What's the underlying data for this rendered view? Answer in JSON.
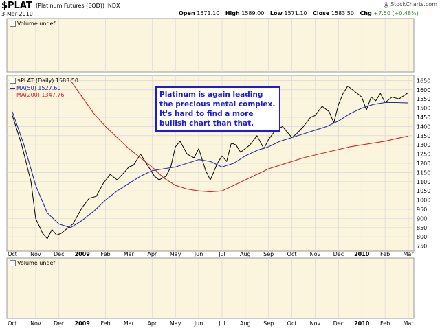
{
  "header": {
    "symbol": "$PLAT",
    "name": "(Platinum Futures (EOD)) INDX",
    "date": "3-Mar-2010",
    "quote": {
      "open_label": "Open",
      "open": "1571.10",
      "high_label": "High",
      "high": "1589.00",
      "low_label": "Low",
      "low": "1571.10",
      "close_label": "Close",
      "close": "1583.50",
      "chg_label": "Chg",
      "chg": "+7.50 (+0.48%)"
    },
    "logo": "@ StockCharts.com"
  },
  "top_panel": {
    "label": "Volume undef"
  },
  "main_panel": {
    "legend_price": "$PLAT (Daily) 1583.50",
    "legend_ma50": "MA(50) 1527.60",
    "legend_ma200": "MA(200) 1347.76"
  },
  "bottom_panel": {
    "label": "Volume undef"
  },
  "annotation": {
    "lines": [
      "Platinum is again leading",
      "the precious metal complex.",
      "It's hard to find a more",
      "bullish chart than that."
    ]
  },
  "colors": {
    "price": "#000000",
    "ma50": "#2a2aa0",
    "ma200": "#e02020",
    "grid": "#d8d8d8",
    "panel_bg": "#fbf5dd",
    "annotation": "#1b1bd9"
  },
  "chart_data": {
    "type": "line",
    "x_labels": [
      "Oct",
      "Nov",
      "Dec",
      "2009",
      "Feb",
      "Mar",
      "Apr",
      "May",
      "Jun",
      "Jul",
      "Aug",
      "Sep",
      "Oct",
      "Nov",
      "Dec",
      "2010",
      "Feb",
      "Mar"
    ],
    "y_ticks": [
      750,
      800,
      850,
      900,
      950,
      1000,
      1050,
      1100,
      1150,
      1200,
      1250,
      1300,
      1350,
      1400,
      1450,
      1500,
      1550,
      1600,
      1650
    ],
    "ylim": [
      730,
      1670
    ],
    "grid": true,
    "legend": "top-left",
    "series": [
      {
        "name": "$PLAT (Daily)",
        "x": [
          0,
          0.4,
          0.8,
          1.0,
          1.3,
          1.5,
          1.7,
          1.9,
          2.1,
          2.3,
          2.6,
          3.0,
          3.3,
          3.6,
          3.9,
          4.2,
          4.5,
          4.8,
          5.0,
          5.2,
          5.5,
          5.8,
          6.1,
          6.3,
          6.6,
          6.8,
          7.0,
          7.2,
          7.5,
          7.8,
          8.0,
          8.3,
          8.5,
          8.8,
          9.0,
          9.2,
          9.4,
          9.6,
          9.8,
          10.2,
          10.5,
          10.8,
          11.0,
          11.3,
          11.6,
          12.0,
          12.2,
          12.5,
          12.8,
          13.0,
          13.3,
          13.6,
          13.8,
          14.0,
          14.2,
          14.4,
          14.7,
          15.0,
          15.2,
          15.4,
          15.6,
          15.8,
          16.0,
          16.3,
          16.6,
          17.0
        ],
        "values": [
          1460,
          1300,
          1100,
          900,
          820,
          790,
          840,
          810,
          820,
          840,
          870,
          960,
          1010,
          1020,
          1090,
          1140,
          1110,
          1150,
          1180,
          1190,
          1250,
          1190,
          1130,
          1110,
          1130,
          1180,
          1290,
          1320,
          1250,
          1230,
          1280,
          1160,
          1110,
          1200,
          1240,
          1210,
          1310,
          1300,
          1260,
          1300,
          1350,
          1280,
          1330,
          1380,
          1400,
          1340,
          1360,
          1400,
          1450,
          1460,
          1510,
          1480,
          1420,
          1520,
          1580,
          1620,
          1590,
          1560,
          1490,
          1560,
          1540,
          1580,
          1530,
          1560,
          1550,
          1584
        ]
      },
      {
        "name": "MA(50)",
        "x": [
          0,
          0.5,
          1.0,
          1.5,
          2.0,
          2.5,
          3.0,
          3.5,
          4.0,
          4.5,
          5.0,
          5.5,
          6.0,
          6.5,
          7.0,
          7.5,
          8.0,
          8.5,
          9.0,
          9.5,
          10.0,
          10.5,
          11.0,
          11.5,
          12.0,
          12.5,
          13.0,
          13.5,
          14.0,
          14.5,
          15.0,
          15.5,
          16.0,
          16.5,
          17.0
        ],
        "values": [
          1480,
          1300,
          1080,
          930,
          870,
          850,
          890,
          940,
          1000,
          1050,
          1090,
          1130,
          1160,
          1170,
          1180,
          1200,
          1220,
          1210,
          1180,
          1200,
          1240,
          1270,
          1290,
          1320,
          1340,
          1360,
          1380,
          1400,
          1430,
          1470,
          1500,
          1520,
          1530,
          1530,
          1528
        ]
      },
      {
        "name": "MA(200)",
        "x": [
          2.5,
          3.0,
          3.5,
          4.0,
          4.5,
          5.0,
          5.5,
          6.0,
          6.5,
          7.0,
          7.5,
          8.0,
          8.5,
          9.0,
          9.5,
          10.0,
          10.5,
          11.0,
          11.5,
          12.0,
          12.5,
          13.0,
          13.5,
          14.0,
          14.5,
          15.0,
          15.5,
          16.0,
          16.5,
          17.0
        ],
        "values": [
          1650,
          1560,
          1470,
          1400,
          1340,
          1280,
          1230,
          1180,
          1120,
          1080,
          1060,
          1050,
          1045,
          1050,
          1080,
          1110,
          1140,
          1170,
          1190,
          1210,
          1230,
          1245,
          1260,
          1275,
          1290,
          1300,
          1310,
          1320,
          1335,
          1348
        ]
      }
    ]
  }
}
